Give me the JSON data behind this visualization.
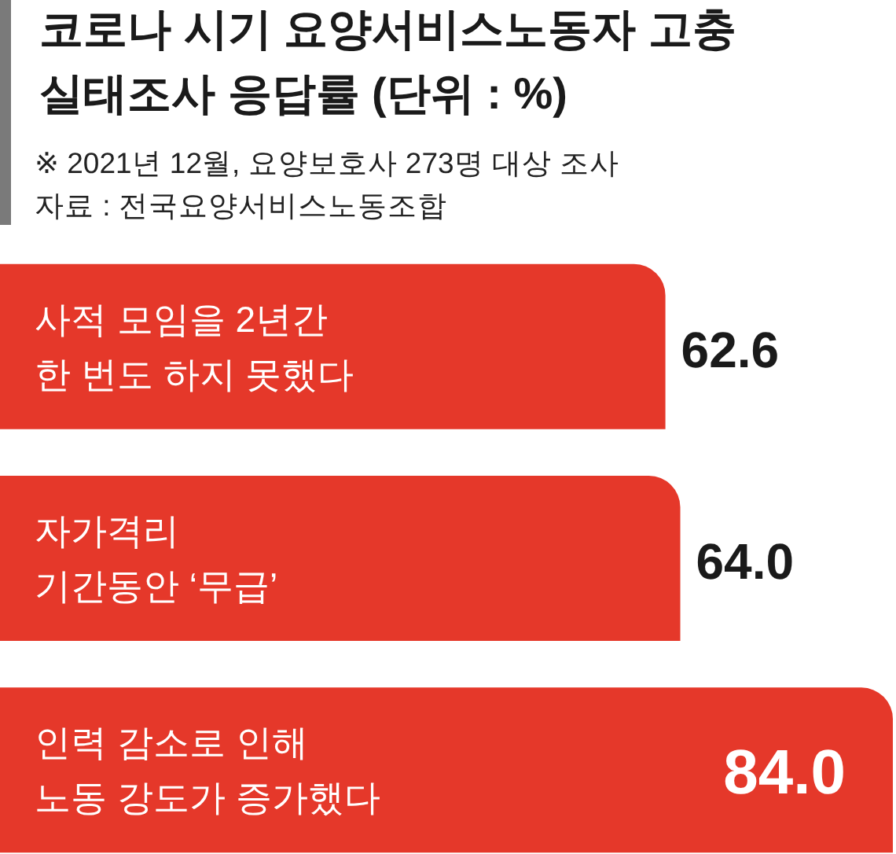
{
  "chart_data": {
    "type": "bar",
    "orientation": "horizontal",
    "title": "코로나 시기 요양서비스노동자 고충\n실태조사 응답률 (단위 : %)",
    "annotations": [
      "※ 2021년 12월, 요양보호사 273명 대상 조사",
      "자료 : 전국요양서비스노동조합"
    ],
    "categories": [
      "사적 모임을 2년간\n한 번도 하지 못했다",
      "자가격리\n기간동안 ‘무급’",
      "인력 감소로 인해\n노동 강도가 증가했다"
    ],
    "values": [
      62.6,
      64.0,
      84.0
    ],
    "value_labels": [
      "62.6",
      "64.0",
      "84.0"
    ],
    "color": "#e5382a",
    "tick_labels": "y"
  }
}
